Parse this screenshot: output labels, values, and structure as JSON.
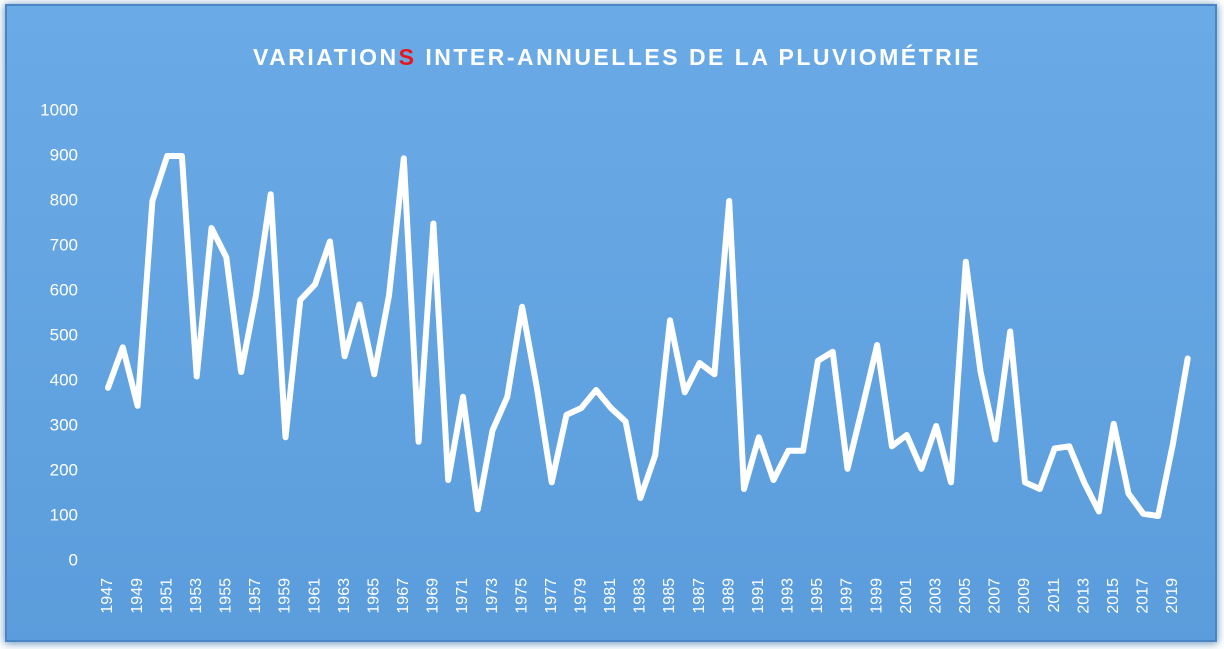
{
  "chart_data": {
    "type": "line",
    "title": "VARIATIONS INTER-ANNUELLES DE LA PLUVIOMÉTRIE",
    "categories": [
      "1947",
      null,
      "1949",
      null,
      "1951",
      null,
      "1953",
      null,
      "1955",
      null,
      "1957",
      null,
      "1959",
      null,
      "1961",
      null,
      "1963",
      null,
      "1965",
      null,
      "1967",
      null,
      "1969",
      null,
      "1971",
      null,
      "1973",
      null,
      "1975",
      null,
      "1977",
      null,
      "1979",
      null,
      "1981",
      null,
      "1983",
      null,
      "1985",
      null,
      "1987",
      null,
      "1989",
      null,
      "1991",
      null,
      "1993",
      null,
      "1995",
      null,
      "1997",
      null,
      "1999",
      null,
      "2001",
      null,
      "2003",
      null,
      "2005",
      null,
      "2007",
      null,
      "2009",
      null,
      "2011",
      null,
      "2013",
      null,
      "2015",
      null,
      "2017",
      null,
      "2019",
      null
    ],
    "values": [
      385,
      475,
      345,
      800,
      900,
      900,
      410,
      740,
      675,
      420,
      590,
      815,
      275,
      580,
      615,
      710,
      455,
      570,
      415,
      590,
      895,
      265,
      750,
      180,
      365,
      115,
      290,
      365,
      565,
      385,
      175,
      325,
      340,
      380,
      340,
      310,
      140,
      235,
      535,
      375,
      440,
      415,
      800,
      160,
      275,
      180,
      245,
      245,
      445,
      465,
      205,
      340,
      480,
      255,
      280,
      205,
      300,
      175,
      665,
      420,
      270,
      510,
      175,
      160,
      250,
      255,
      175,
      110,
      305,
      150,
      105,
      100,
      260,
      450
    ],
    "color": "#ffffff",
    "ylim": [
      0,
      1000
    ],
    "yticks": [
      0,
      100,
      200,
      300,
      400,
      500,
      600,
      700,
      800,
      900,
      1000
    ],
    "grid": false,
    "title_accent_color": "#e8161b"
  }
}
